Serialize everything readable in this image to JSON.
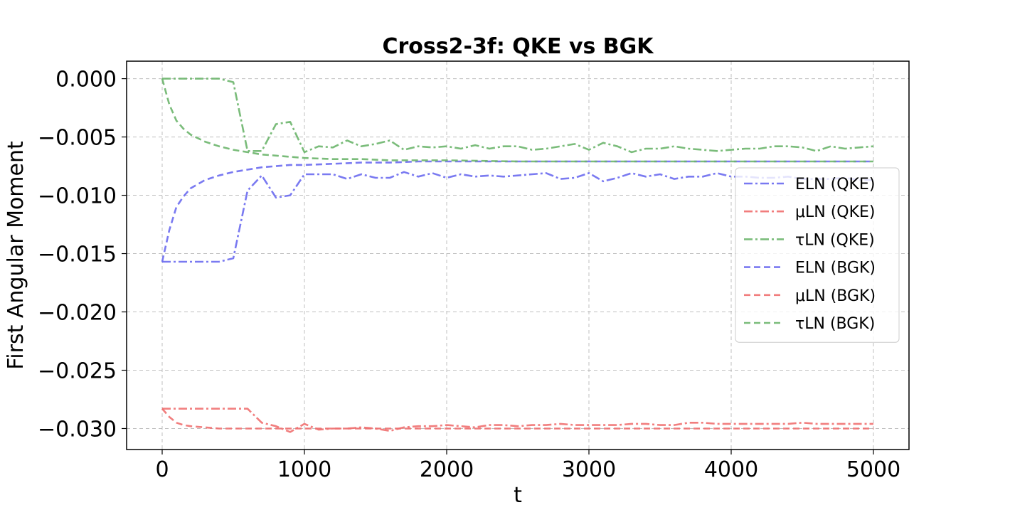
{
  "chart_data": {
    "type": "line",
    "title": "Cross2-3f: QKE vs BGK",
    "xlabel": "t",
    "ylabel": "First Angular Moment",
    "xlim": [
      -250,
      5250
    ],
    "ylim": [
      -0.0318,
      0.0015
    ],
    "xticks": [
      0,
      1000,
      2000,
      3000,
      4000,
      5000
    ],
    "xtick_labels": [
      "0",
      "1000",
      "2000",
      "3000",
      "4000",
      "5000"
    ],
    "yticks": [
      0.0,
      -0.005,
      -0.01,
      -0.015,
      -0.02,
      -0.025,
      -0.03
    ],
    "ytick_labels": [
      "0.000",
      "−0.005",
      "−0.010",
      "−0.015",
      "−0.020",
      "−0.025",
      "−0.030"
    ],
    "grid": true,
    "legend_position": "center-right",
    "series": [
      {
        "name": "ELN (QKE)",
        "color": "#6b6bf0",
        "style": "dashdot",
        "x": [
          0,
          100,
          200,
          300,
          400,
          500,
          600,
          700,
          800,
          900,
          1000,
          1100,
          1200,
          1300,
          1400,
          1500,
          1600,
          1700,
          1800,
          1900,
          2000,
          2100,
          2200,
          2300,
          2400,
          2500,
          2600,
          2700,
          2800,
          2900,
          3000,
          3100,
          3200,
          3300,
          3400,
          3500,
          3600,
          3700,
          3800,
          3900,
          4000,
          4100,
          4200,
          4300,
          4400,
          4500,
          4600,
          4700,
          4800,
          4900,
          5000
        ],
        "y": [
          -0.0157,
          -0.0157,
          -0.0157,
          -0.0157,
          -0.0157,
          -0.0154,
          -0.0096,
          -0.0083,
          -0.0102,
          -0.01,
          -0.0082,
          -0.0082,
          -0.0082,
          -0.0086,
          -0.0082,
          -0.0085,
          -0.0085,
          -0.008,
          -0.0084,
          -0.0081,
          -0.0085,
          -0.0082,
          -0.0084,
          -0.0083,
          -0.0084,
          -0.0083,
          -0.0082,
          -0.0081,
          -0.0086,
          -0.0085,
          -0.0081,
          -0.0088,
          -0.0085,
          -0.0081,
          -0.0084,
          -0.0082,
          -0.0086,
          -0.0084,
          -0.0084,
          -0.0081,
          -0.0084,
          -0.0084,
          -0.0085,
          -0.0085,
          -0.0084,
          -0.0086,
          -0.0086,
          -0.0086,
          -0.0085,
          -0.0087,
          -0.0087
        ]
      },
      {
        "name": "μLN (QKE)",
        "color": "#f07070",
        "style": "dashdot",
        "x": [
          0,
          100,
          200,
          300,
          400,
          500,
          600,
          700,
          800,
          900,
          1000,
          1100,
          1200,
          1300,
          1400,
          1500,
          1600,
          1700,
          1800,
          1900,
          2000,
          2100,
          2200,
          2300,
          2400,
          2500,
          2600,
          2700,
          2800,
          2900,
          3000,
          3100,
          3200,
          3300,
          3400,
          3500,
          3600,
          3700,
          3800,
          3900,
          4000,
          4100,
          4200,
          4300,
          4400,
          4500,
          4600,
          4700,
          4800,
          4900,
          5000
        ],
        "y": [
          -0.0283,
          -0.0283,
          -0.0283,
          -0.0283,
          -0.0283,
          -0.0283,
          -0.0283,
          -0.0295,
          -0.0298,
          -0.0303,
          -0.0296,
          -0.0301,
          -0.03,
          -0.03,
          -0.0299,
          -0.03,
          -0.0302,
          -0.0299,
          -0.0298,
          -0.0298,
          -0.0297,
          -0.0298,
          -0.0299,
          -0.0297,
          -0.0297,
          -0.0298,
          -0.0297,
          -0.0297,
          -0.0296,
          -0.0297,
          -0.0297,
          -0.0297,
          -0.0297,
          -0.0296,
          -0.0296,
          -0.0297,
          -0.0297,
          -0.0295,
          -0.0295,
          -0.0296,
          -0.0296,
          -0.0296,
          -0.0296,
          -0.0296,
          -0.0296,
          -0.0295,
          -0.0296,
          -0.0296,
          -0.0296,
          -0.0296,
          -0.0296
        ]
      },
      {
        "name": "τLN (QKE)",
        "color": "#6cb56c",
        "style": "dashdot",
        "x": [
          0,
          100,
          200,
          300,
          400,
          500,
          600,
          700,
          800,
          900,
          1000,
          1100,
          1200,
          1300,
          1400,
          1500,
          1600,
          1700,
          1800,
          1900,
          2000,
          2100,
          2200,
          2300,
          2400,
          2500,
          2600,
          2700,
          2800,
          2900,
          3000,
          3100,
          3200,
          3300,
          3400,
          3500,
          3600,
          3700,
          3800,
          3900,
          4000,
          4100,
          4200,
          4300,
          4400,
          4500,
          4600,
          4700,
          4800,
          4900,
          5000
        ],
        "y": [
          0.0,
          0.0,
          0.0,
          0.0,
          0.0,
          -0.0003,
          -0.0062,
          -0.0062,
          -0.0039,
          -0.0037,
          -0.0063,
          -0.0058,
          -0.0059,
          -0.0053,
          -0.0058,
          -0.0056,
          -0.0053,
          -0.0061,
          -0.0058,
          -0.0059,
          -0.0058,
          -0.006,
          -0.0057,
          -0.006,
          -0.0058,
          -0.0058,
          -0.0061,
          -0.006,
          -0.0058,
          -0.0056,
          -0.0061,
          -0.0055,
          -0.0058,
          -0.0063,
          -0.006,
          -0.006,
          -0.0058,
          -0.006,
          -0.0061,
          -0.0062,
          -0.0061,
          -0.006,
          -0.006,
          -0.0058,
          -0.0058,
          -0.0059,
          -0.0062,
          -0.0058,
          -0.006,
          -0.0059,
          -0.0058
        ]
      },
      {
        "name": "ELN (BGK)",
        "color": "#6b6bf0",
        "style": "dashed",
        "x": [
          0,
          50,
          100,
          150,
          200,
          300,
          400,
          500,
          600,
          700,
          800,
          900,
          1000,
          1200,
          1400,
          1600,
          1800,
          2000,
          2500,
          3000,
          3500,
          4000,
          4500,
          5000
        ],
        "y": [
          -0.0157,
          -0.013,
          -0.011,
          -0.0101,
          -0.0094,
          -0.0087,
          -0.0083,
          -0.008,
          -0.0078,
          -0.0076,
          -0.0075,
          -0.0074,
          -0.0074,
          -0.0073,
          -0.0072,
          -0.0072,
          -0.0071,
          -0.0071,
          -0.0071,
          -0.0071,
          -0.0071,
          -0.0071,
          -0.0071,
          -0.0071
        ]
      },
      {
        "name": "μLN (BGK)",
        "color": "#f07070",
        "style": "dashed",
        "x": [
          0,
          50,
          100,
          150,
          200,
          300,
          400,
          500,
          600,
          800,
          1000,
          1500,
          2000,
          3000,
          4000,
          5000
        ],
        "y": [
          -0.0283,
          -0.029,
          -0.0295,
          -0.0297,
          -0.0298,
          -0.0299,
          -0.03,
          -0.03,
          -0.03,
          -0.03,
          -0.03,
          -0.03,
          -0.03,
          -0.03,
          -0.03,
          -0.03
        ]
      },
      {
        "name": "τLN (BGK)",
        "color": "#6cb56c",
        "style": "dashed",
        "x": [
          0,
          50,
          100,
          150,
          200,
          300,
          400,
          500,
          600,
          700,
          800,
          900,
          1000,
          1200,
          1400,
          1600,
          1800,
          2000,
          2500,
          3000,
          3500,
          4000,
          4500,
          5000
        ],
        "y": [
          0.0,
          -0.0022,
          -0.0036,
          -0.0043,
          -0.0048,
          -0.0054,
          -0.0058,
          -0.0061,
          -0.0063,
          -0.0065,
          -0.0066,
          -0.0067,
          -0.0068,
          -0.0069,
          -0.0069,
          -0.007,
          -0.007,
          -0.007,
          -0.0071,
          -0.0071,
          -0.0071,
          -0.0071,
          -0.0071,
          -0.0071
        ]
      }
    ]
  }
}
